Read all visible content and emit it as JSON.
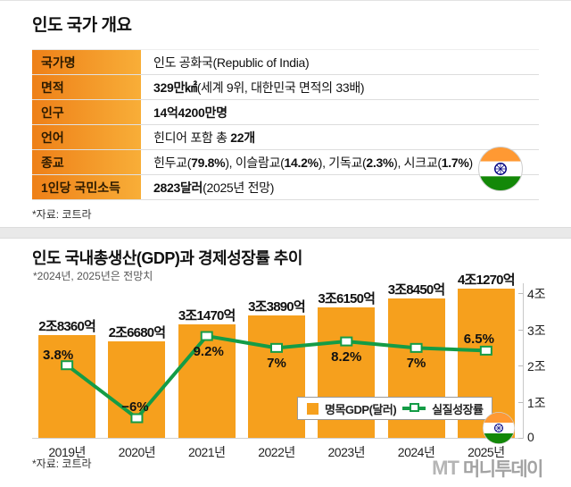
{
  "overview": {
    "title": "인도 국가 개요",
    "source": "*자료: 코트라",
    "rows": [
      {
        "label": "국가명",
        "segments": [
          {
            "t": "인도 공화국(Republic of India)",
            "b": false
          }
        ]
      },
      {
        "label": "면적",
        "segments": [
          {
            "t": "329만㎢",
            "b": true
          },
          {
            "t": "(세계 9위, 대한민국 면적의 33배)",
            "b": false
          }
        ]
      },
      {
        "label": "인구",
        "segments": [
          {
            "t": "14억4200만명",
            "b": true
          }
        ]
      },
      {
        "label": "언어",
        "segments": [
          {
            "t": "힌디어 포함 총 ",
            "b": false
          },
          {
            "t": "22개",
            "b": true
          }
        ]
      },
      {
        "label": "종교",
        "segments": [
          {
            "t": "힌두교(",
            "b": false
          },
          {
            "t": "79.8%",
            "b": true
          },
          {
            "t": "), 이슬람교(",
            "b": false
          },
          {
            "t": "14.2%",
            "b": true
          },
          {
            "t": "), 기독교(",
            "b": false
          },
          {
            "t": "2.3%",
            "b": true
          },
          {
            "t": "), 시크교(",
            "b": false
          },
          {
            "t": "1.7%",
            "b": true
          },
          {
            "t": ")",
            "b": false
          }
        ]
      },
      {
        "label": "1인당 국민소득",
        "segments": [
          {
            "t": "2823달러",
            "b": true
          },
          {
            "t": "(2025년 전망)",
            "b": false
          }
        ]
      }
    ]
  },
  "chart": {
    "title": "인도 국내총생산(GDP)과 경제성장률 추이",
    "subtitle": "*2024년, 2025년은 전망치",
    "source": "*자료: 코트라",
    "legend": {
      "bar": "명목GDP(달러)",
      "line": "실질성장률"
    },
    "watermark": {
      "logo": "MT",
      "name": "머니투데이"
    }
  },
  "chart_data": {
    "type": "bar",
    "title": "인도 국내총생산(GDP)과 경제성장률 추이",
    "categories": [
      "2019년",
      "2020년",
      "2021년",
      "2022년",
      "2023년",
      "2024년",
      "2025년"
    ],
    "series": [
      {
        "name": "명목GDP(달러)",
        "type": "bar",
        "unit": "조",
        "values": [
          2.836,
          2.668,
          3.147,
          3.389,
          3.615,
          3.845,
          4.127
        ],
        "labels": [
          "2조8360억",
          "2조6680억",
          "3조1470억",
          "3조3890억",
          "3조6150억",
          "3조8450억",
          "4조1270억"
        ],
        "color": "#f6a01d"
      },
      {
        "name": "실질성장률",
        "type": "line",
        "unit": "%",
        "values": [
          3.8,
          -6,
          9.2,
          7,
          8.2,
          7,
          6.5
        ],
        "labels": [
          "3.8%",
          "−6%",
          "9.2%",
          "7%",
          "8.2%",
          "7%",
          "6.5%"
        ],
        "color": "#149c46"
      }
    ],
    "y_axis": {
      "position": "right",
      "min": 0,
      "max": 4,
      "ticks": [
        "4조",
        "3조",
        "2조",
        "1조",
        "0"
      ],
      "tick_values": [
        4,
        3,
        2,
        1,
        0
      ]
    },
    "grid": false,
    "legend_position": "inside-bottom-right"
  }
}
